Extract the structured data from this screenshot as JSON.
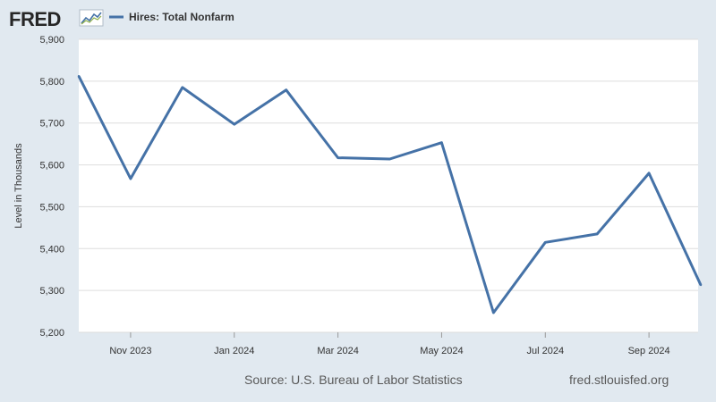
{
  "header": {
    "logo_text": "FRED",
    "logo_icon": "fred-line-chart-icon"
  },
  "footer": {
    "source": "Source: U.S. Bureau of Labor Statistics",
    "site": "fred.stlouisfed.org"
  },
  "colors": {
    "background": "#e1e9f0",
    "plot_background": "#ffffff",
    "series_line": "#4572a7",
    "grid": "#dddddd"
  },
  "chart_data": {
    "type": "line",
    "title": "",
    "xlabel": "",
    "ylabel": "Level in Thousands",
    "ylim": [
      5200,
      5900
    ],
    "yticks": [
      5200,
      5300,
      5400,
      5500,
      5600,
      5700,
      5800,
      5900
    ],
    "ytick_labels": [
      "5,200",
      "5,300",
      "5,400",
      "5,500",
      "5,600",
      "5,700",
      "5,800",
      "5,900"
    ],
    "x": [
      "2023-10",
      "2023-11",
      "2023-12",
      "2024-01",
      "2024-02",
      "2024-03",
      "2024-04",
      "2024-05",
      "2024-06",
      "2024-07",
      "2024-08",
      "2024-09",
      "2024-10"
    ],
    "xtick_labels": [
      {
        "x": "2023-11",
        "label": "Nov 2023"
      },
      {
        "x": "2024-01",
        "label": "Jan 2024"
      },
      {
        "x": "2024-03",
        "label": "Mar 2024"
      },
      {
        "x": "2024-05",
        "label": "May 2024"
      },
      {
        "x": "2024-07",
        "label": "Jul 2024"
      },
      {
        "x": "2024-09",
        "label": "Sep 2024"
      }
    ],
    "series": [
      {
        "name": "Hires: Total Nonfarm",
        "values": [
          5812,
          5567,
          5785,
          5697,
          5779,
          5617,
          5614,
          5653,
          5247,
          5415,
          5435,
          5580,
          5313
        ]
      }
    ],
    "grid": true,
    "legend": "top-left"
  }
}
